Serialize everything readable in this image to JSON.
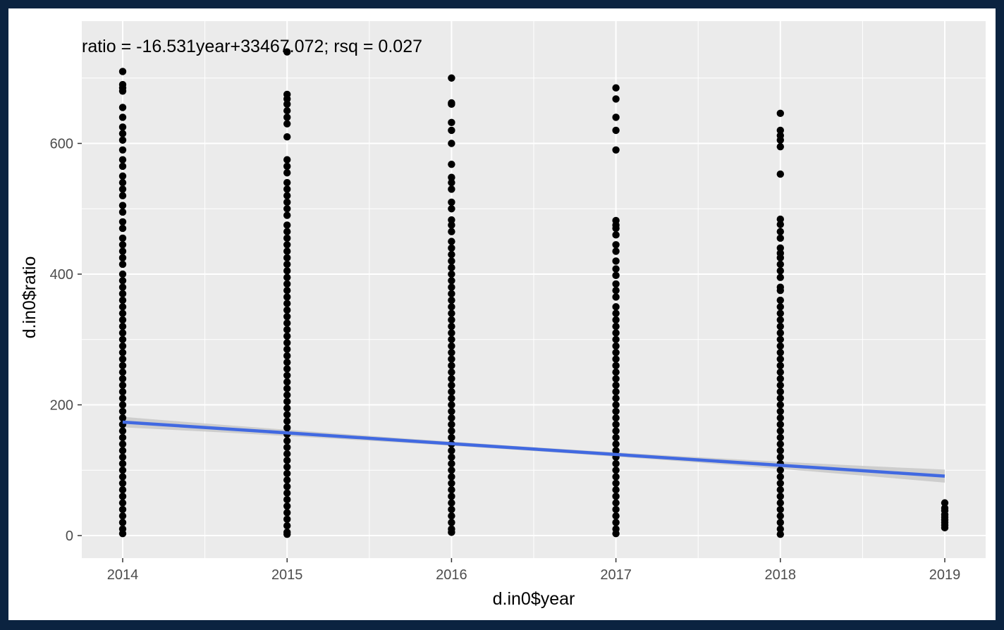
{
  "chart_data": {
    "type": "scatter",
    "xlabel": "d.in0$year",
    "ylabel": "d.in0$ratio",
    "annotation": "ratio = -16.531year+33467.072; rsq = 0.027",
    "x_ticks": [
      "2014",
      "2015",
      "2016",
      "2017",
      "2018",
      "2019"
    ],
    "y_ticks": [
      "0",
      "200",
      "400",
      "600"
    ],
    "xlim": [
      2013.75,
      2019.25
    ],
    "ylim": [
      -33,
      782
    ],
    "grid": true,
    "panel_background": "#ebebeb",
    "grid_color": "#ffffff",
    "point_color": "#000000",
    "fit_line_color": "#4169e1",
    "ribbon_color": "#c8c8c8",
    "fit_line": {
      "slope": -16.531,
      "intercept": 33467.072,
      "x_range": [
        2014,
        2019
      ],
      "ci_halfwidth_ends": [
        8,
        10
      ],
      "ci_halfwidth_mid": 3
    },
    "series": [
      {
        "x": 2014,
        "y_values": [
          710,
          690,
          685,
          680,
          655,
          640,
          625,
          615,
          605,
          590,
          575,
          565,
          550,
          540,
          530,
          520,
          505,
          495,
          480,
          470,
          455,
          445,
          435,
          425,
          415,
          400,
          390,
          380,
          370,
          360,
          350,
          340,
          330,
          320,
          310,
          300,
          290,
          280,
          270,
          260,
          250,
          240,
          230,
          220,
          210,
          200,
          190,
          180,
          170,
          160,
          150,
          140,
          130,
          120,
          110,
          100,
          90,
          80,
          70,
          60,
          50,
          40,
          30,
          20,
          10,
          3
        ]
      },
      {
        "x": 2015,
        "y_values": [
          740,
          675,
          668,
          660,
          650,
          640,
          630,
          610,
          575,
          565,
          555,
          540,
          530,
          520,
          510,
          500,
          490,
          475,
          465,
          455,
          445,
          435,
          425,
          415,
          405,
          395,
          385,
          375,
          365,
          355,
          345,
          335,
          325,
          315,
          305,
          295,
          285,
          275,
          265,
          255,
          245,
          235,
          225,
          215,
          205,
          195,
          185,
          175,
          165,
          155,
          145,
          135,
          125,
          115,
          105,
          95,
          85,
          75,
          65,
          55,
          45,
          35,
          25,
          15,
          5,
          2
        ]
      },
      {
        "x": 2016,
        "y_values": [
          700,
          662,
          660,
          632,
          620,
          600,
          568,
          548,
          540,
          530,
          510,
          500,
          483,
          475,
          465,
          450,
          440,
          430,
          420,
          410,
          400,
          390,
          380,
          370,
          360,
          350,
          340,
          330,
          320,
          310,
          300,
          290,
          280,
          270,
          260,
          250,
          240,
          230,
          220,
          210,
          200,
          190,
          180,
          170,
          160,
          150,
          140,
          130,
          120,
          110,
          100,
          90,
          80,
          70,
          60,
          50,
          40,
          30,
          20,
          10,
          5
        ]
      },
      {
        "x": 2017,
        "y_values": [
          685,
          668,
          640,
          620,
          590,
          482,
          475,
          470,
          460,
          445,
          435,
          420,
          408,
          398,
          385,
          375,
          365,
          350,
          340,
          330,
          320,
          310,
          300,
          290,
          280,
          270,
          260,
          250,
          240,
          230,
          220,
          210,
          200,
          190,
          180,
          170,
          160,
          150,
          140,
          130,
          120,
          110,
          100,
          90,
          80,
          70,
          60,
          50,
          40,
          30,
          20,
          10,
          3
        ]
      },
      {
        "x": 2018,
        "y_values": [
          646,
          620,
          612,
          605,
          595,
          553,
          484,
          476,
          465,
          455,
          440,
          432,
          425,
          415,
          405,
          395,
          380,
          375,
          360,
          350,
          340,
          330,
          320,
          310,
          300,
          290,
          280,
          270,
          260,
          250,
          240,
          230,
          220,
          210,
          200,
          190,
          180,
          170,
          160,
          150,
          140,
          130,
          120,
          110,
          100,
          90,
          80,
          70,
          60,
          50,
          40,
          30,
          20,
          10,
          2
        ]
      },
      {
        "x": 2019,
        "y_values": [
          50,
          42,
          38,
          32,
          28,
          24,
          20,
          16,
          12
        ]
      }
    ]
  }
}
